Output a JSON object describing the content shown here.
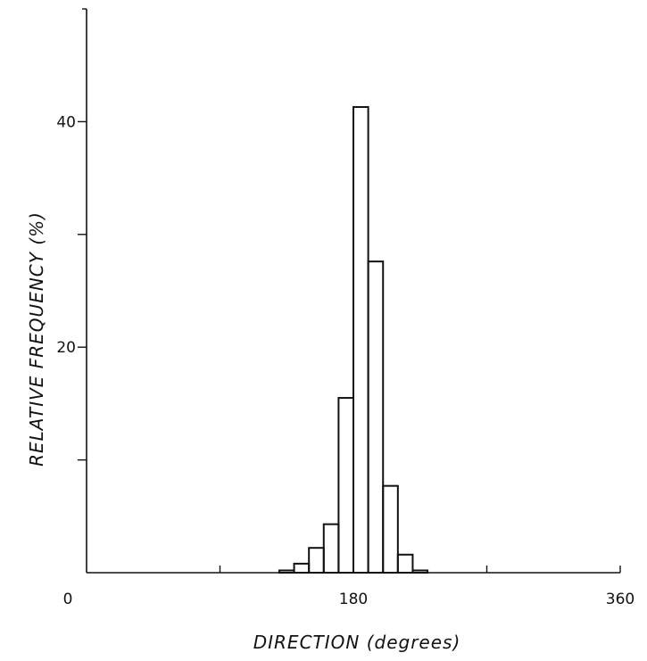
{
  "chart_data": {
    "type": "bar",
    "xlabel": "DIRECTION (degrees)",
    "ylabel": "RELATIVE FREQUENCY (%)",
    "xlim": [
      0,
      360
    ],
    "ylim": [
      0,
      50
    ],
    "x_tick_values": [
      0,
      90,
      180,
      270,
      360
    ],
    "x_tick_labels": [
      "0",
      "",
      "180",
      "",
      "360"
    ],
    "y_tick_values": [
      10,
      20,
      30,
      40
    ],
    "y_tick_labels": [
      "",
      "20",
      "",
      "40"
    ],
    "bin_width": 10,
    "bins": [
      {
        "x0": 130,
        "x1": 140,
        "value": 0.2
      },
      {
        "x0": 140,
        "x1": 150,
        "value": 0.8
      },
      {
        "x0": 150,
        "x1": 160,
        "value": 2.2
      },
      {
        "x0": 160,
        "x1": 170,
        "value": 4.3
      },
      {
        "x0": 170,
        "x1": 180,
        "value": 15.5
      },
      {
        "x0": 180,
        "x1": 190,
        "value": 41.3
      },
      {
        "x0": 190,
        "x1": 200,
        "value": 27.6
      },
      {
        "x0": 200,
        "x1": 210,
        "value": 7.7
      },
      {
        "x0": 210,
        "x1": 220,
        "value": 1.6
      },
      {
        "x0": 220,
        "x1": 230,
        "value": 0.2
      }
    ],
    "grid": false,
    "legend": "none"
  }
}
